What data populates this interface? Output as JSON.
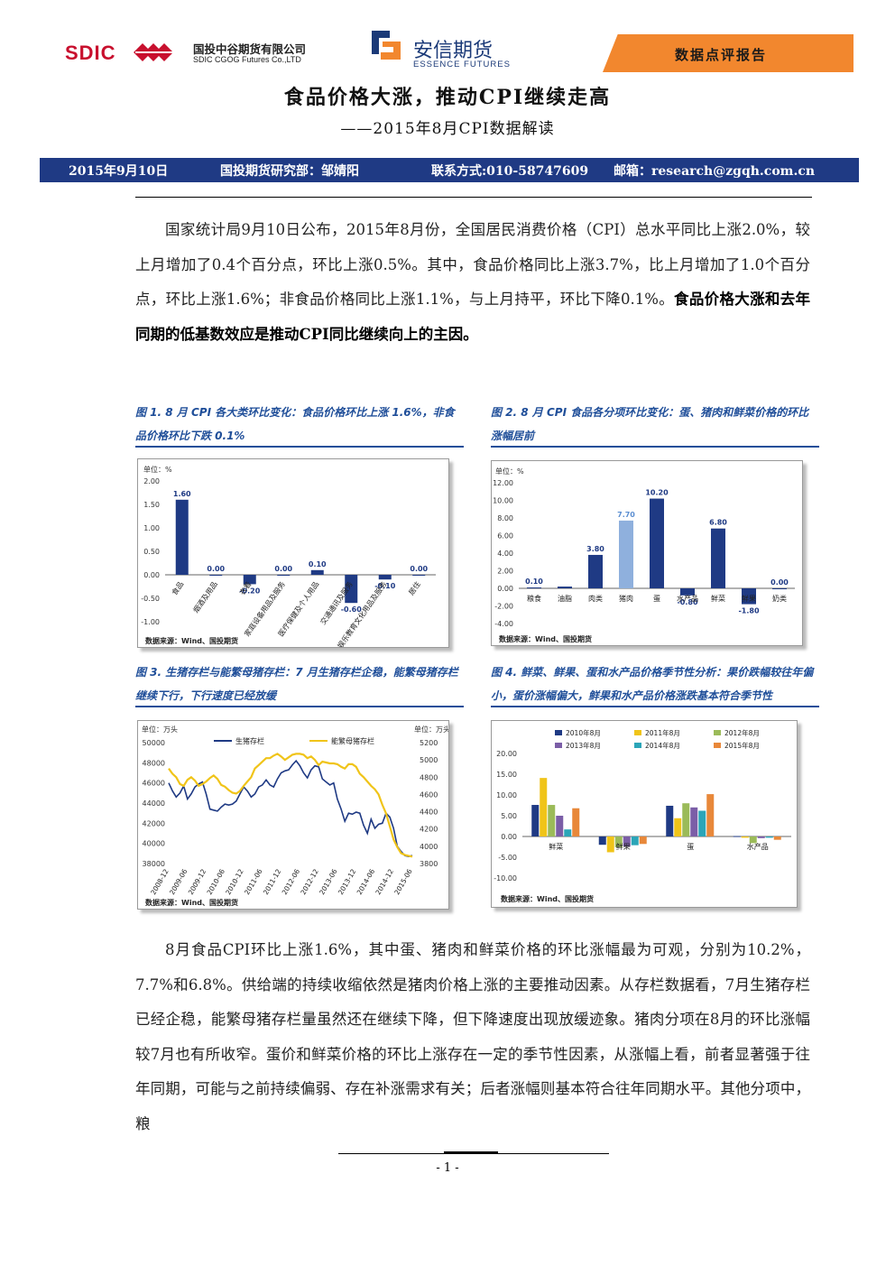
{
  "header": {
    "sdic_logo_text": "SDIC",
    "company_cn": "国投中谷期货有限公司",
    "company_en": "SDIC CGOG Futures Co.,LTD",
    "partner_cn": "安信期货",
    "partner_en": "ESSENCE FUTURES",
    "report_type": "数据点评报告"
  },
  "title": "食品价格大涨，推动CPI继续走高",
  "subtitle": "——2015年8月CPI数据解读",
  "info_bar": {
    "date": "2015年9月10日",
    "dept": "国投期货研究部：邹婧阳",
    "contact": "联系方式:010-58747609",
    "email": "邮箱：research@zgqh.com.cn"
  },
  "paragraph1": {
    "normal": "国家统计局9月10日公布，2015年8月份，全国居民消费价格（CPI）总水平同比上涨2.0%，较上月增加了0.4个百分点，环比上涨0.5%。其中，食品价格同比上涨3.7%，比上月增加了1.0个百分点，环比上涨1.6%；非食品价格同比上涨1.1%，与上月持平，环比下降0.1%。",
    "bold": "食品价格大涨和去年同期的低基数效应是推动CPI同比继续向上的主因。"
  },
  "paragraph2": "8月食品CPI环比上涨1.6%，其中蛋、猪肉和鲜菜价格的环比涨幅最为可观，分别为10.2%，7.7%和6.8%。供给端的持续收缩依然是猪肉价格上涨的主要推动因素。从存栏数据看，7月生猪存栏已经企稳，能繁母猪存栏量虽然还在继续下降，但下降速度出现放缓迹象。猪肉分项在8月的环比涨幅较7月也有所收窄。蛋价和鲜菜价格的环比上涨存在一定的季节性因素，从涨幅上看，前者显著强于往年同期，可能与之前持续偏弱、存在补涨需求有关；后者涨幅则基本符合往年同期水平。其他分项中，粮",
  "page_number": "- 1 -",
  "figures": {
    "fig1_caption": "图 1. 8 月 CPI 各大类环比变化：食品价格环比上涨 1.6%，非食品价格环比下跌 0.1%",
    "fig2_caption": "图 2. 8 月 CPI 食品各分项环比变化：蛋、猪肉和鲜菜价格的环比涨幅居前",
    "fig3_caption": "图 3. 生猪存栏与能繁母猪存栏：7 月生猪存栏企稳，能繁母猪存栏继续下行，下行速度已经放缓",
    "fig4_caption": "图 4. 鲜菜、鲜果、蛋和水产品价格季节性分析：果价跌幅较往年偏小，蛋价涨幅偏大，鲜果和水产品价格涨跌基本符合季节性"
  },
  "chart_data": [
    {
      "type": "bar",
      "unit_label": "单位：%",
      "source": "数据来源：Wind、国投期货",
      "categories": [
        "食品",
        "烟酒及用品",
        "衣着",
        "家庭设备用品及服务",
        "医疗保健及个人用品",
        "交通通讯及服务",
        "娱乐教育文化用品及服务",
        "居住"
      ],
      "values": [
        1.6,
        0.0,
        -0.2,
        0.0,
        0.1,
        -0.6,
        -0.1,
        0.0
      ],
      "data_labels": [
        "1.60",
        "0.00",
        "-0.20",
        "0.00",
        "0.10",
        "-0.60",
        "-0.10",
        "0.00"
      ],
      "yticks": [
        "2.00",
        "1.50",
        "1.00",
        "0.50",
        "0.00",
        "-0.50",
        "-1.00"
      ],
      "ylim": [
        -1.0,
        2.0
      ]
    },
    {
      "type": "bar",
      "unit_label": "单位：%",
      "source": "数据来源：Wind、国投期货",
      "categories": [
        "粮食",
        "油脂",
        "肉类",
        "猪肉",
        "蛋",
        "水产品",
        "鲜菜",
        "鲜果",
        "奶类"
      ],
      "values": [
        0.1,
        0.2,
        3.8,
        7.7,
        10.2,
        -0.8,
        6.8,
        -1.8,
        0.0
      ],
      "data_labels": [
        "0.10",
        "",
        "3.80",
        "7.70",
        "10.20",
        "-0.80",
        "6.80",
        "-1.80",
        "0.00"
      ],
      "highlight_index": 3,
      "yticks": [
        "12.00",
        "10.00",
        "8.00",
        "6.00",
        "4.00",
        "2.00",
        "0.00",
        "-2.00",
        "-4.00"
      ],
      "ylim": [
        -4.0,
        12.0
      ]
    },
    {
      "type": "line",
      "left_unit": "单位：万头",
      "right_unit": "单位：万头",
      "source": "数据来源：Wind、国投期货",
      "series": [
        {
          "name": "生猪存栏",
          "axis": "left",
          "color": "#1f3a84",
          "values": [
            46000,
            45200,
            44600,
            45000,
            45700,
            44400,
            44900,
            45600,
            45900,
            46100,
            44900,
            43400,
            43300,
            43200,
            43600,
            43900,
            43800,
            43900,
            44200,
            44900,
            45600,
            45200,
            44600,
            44900,
            45600,
            45800,
            46300,
            45800,
            45600,
            46400,
            47000,
            47200,
            47300,
            47800,
            48200,
            47700,
            47000,
            46500,
            47300,
            47700,
            47600,
            46400,
            46100,
            45800,
            46000,
            44400,
            43400,
            42200,
            43000,
            42900,
            43100,
            43000,
            41800,
            41000,
            42400,
            41500,
            41900,
            42000,
            43000,
            42600,
            41500,
            39700,
            39200,
            38800,
            38700,
            38800
          ]
        },
        {
          "name": "能繁母猪存栏",
          "axis": "right",
          "color": "#f0c419",
          "values": [
            4900,
            4840,
            4800,
            4720,
            4700,
            4770,
            4800,
            4760,
            4700,
            4720,
            4750,
            4790,
            4820,
            4780,
            4710,
            4690,
            4650,
            4620,
            4610,
            4640,
            4700,
            4750,
            4800,
            4900,
            4940,
            4980,
            5020,
            5020,
            5050,
            5070,
            5040,
            5000,
            5030,
            5060,
            5070,
            5070,
            5060,
            5020,
            5040,
            5000,
            4940,
            4980,
            4970,
            4960,
            4960,
            4950,
            4920,
            4900,
            4950,
            4950,
            4920,
            4840,
            4800,
            4750,
            4700,
            4660,
            4600,
            4480,
            4380,
            4230,
            4080,
            3990,
            3920,
            3900,
            3890,
            3880
          ]
        }
      ],
      "x_ticks": [
        "2008-12",
        "2009-06",
        "2009-12",
        "2010-06",
        "2010-12",
        "2011-06",
        "2011-12",
        "2012-06",
        "2012-12",
        "2013-06",
        "2013-12",
        "2014-06",
        "2014-12",
        "2015-06"
      ],
      "left_yticks": [
        "50000",
        "48000",
        "46000",
        "44000",
        "42000",
        "40000",
        "38000"
      ],
      "right_yticks": [
        "5200",
        "5000",
        "4800",
        "4600",
        "4400",
        "4200",
        "4000",
        "3800"
      ],
      "left_ylim": [
        38000,
        50000
      ],
      "right_ylim": [
        3800,
        5200
      ]
    },
    {
      "type": "bar",
      "source": "数据来源：Wind、国投期货",
      "categories": [
        "鲜菜",
        "鲜果",
        "蛋",
        "水产品"
      ],
      "series": [
        {
          "name": "2010年8月",
          "color": "#1f3a84",
          "values": [
            7.6,
            -2.0,
            7.4,
            0.1
          ]
        },
        {
          "name": "2011年8月",
          "color": "#f0c419",
          "values": [
            14.1,
            -3.8,
            4.4,
            -0.3
          ]
        },
        {
          "name": "2012年8月",
          "color": "#9bbb59",
          "values": [
            7.6,
            -2.6,
            8.0,
            -1.6
          ]
        },
        {
          "name": "2013年8月",
          "color": "#7b5ea7",
          "values": [
            5.0,
            -2.4,
            7.0,
            -0.4
          ]
        },
        {
          "name": "2014年8月",
          "color": "#2ba5b8",
          "values": [
            1.7,
            -2.1,
            6.2,
            -0.3
          ]
        },
        {
          "name": "2015年8月",
          "color": "#e8883a",
          "values": [
            6.8,
            -1.8,
            10.2,
            -0.8
          ]
        }
      ],
      "yticks": [
        "20.00",
        "15.00",
        "10.00",
        "5.00",
        "0.00",
        "-5.00",
        "-10.00"
      ],
      "ylim": [
        -10,
        20
      ]
    }
  ]
}
